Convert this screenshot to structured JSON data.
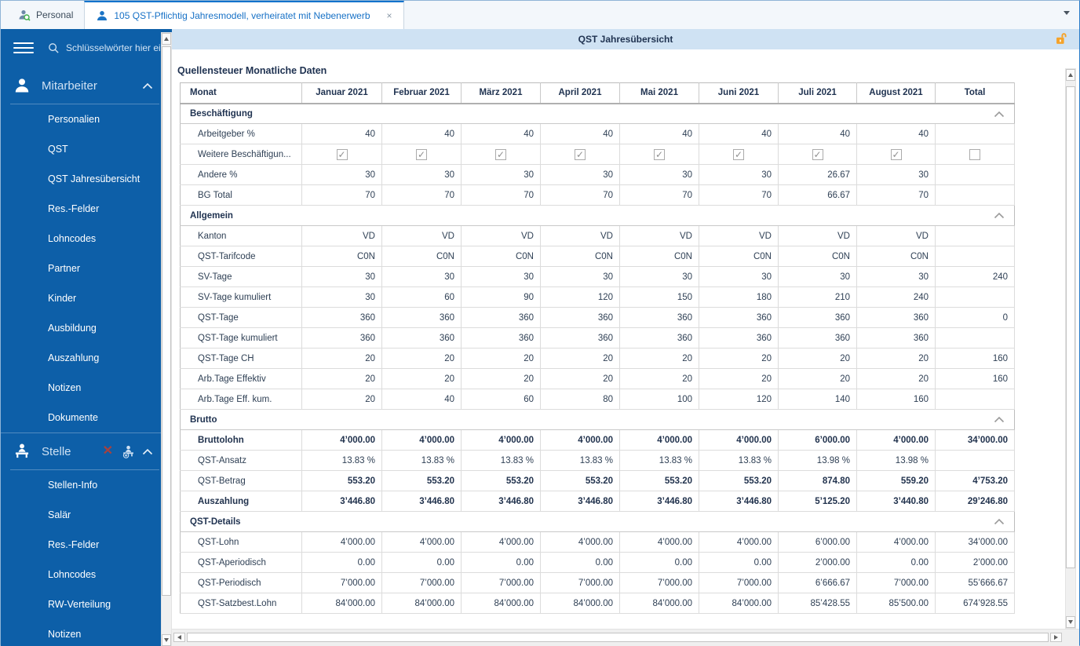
{
  "tabs": [
    {
      "label": "Personal",
      "icon": "person-search-icon",
      "active": false
    },
    {
      "label": "105 QST-Pflichtig Jahresmodell, verheiratet mit Nebenerwerb",
      "icon": "person-icon",
      "active": true,
      "close": "×"
    }
  ],
  "sidebar": {
    "search_placeholder": "Schlüsselwörter hier eing",
    "sections": [
      {
        "label": "Mitarbeiter",
        "icon": "person-icon",
        "actions": [],
        "items": [
          "Personalien",
          "QST",
          "QST Jahresübersicht",
          "Res.-Felder",
          "Lohncodes",
          "Partner",
          "Kinder",
          "Ausbildung",
          "Auszahlung",
          "Notizen",
          "Dokumente"
        ]
      },
      {
        "label": "Stelle",
        "icon": "person-desk-icon",
        "actions": [
          "delete-x-icon",
          "add-person-icon"
        ],
        "items": [
          "Stellen-Info",
          "Salär",
          "Res.-Felder",
          "Lohncodes",
          "RW-Verteilung",
          "Notizen"
        ]
      }
    ]
  },
  "main": {
    "header_title": "QST Jahresübersicht",
    "table_title": "Quellensteuer Monatliche Daten",
    "colors": {
      "sidebar": "#0d5fa8",
      "titlebar": "#cfe2f3",
      "accent_blue": "#1373cc",
      "lock_orange": "#f5a32a",
      "navy_text": "#1f3250"
    },
    "grid": {
      "columns": [
        "Monat",
        "Januar 2021",
        "Februar 2021",
        "März 2021",
        "April 2021",
        "Mai 2021",
        "Juni 2021",
        "Juli 2021",
        "August 2021",
        "Total"
      ],
      "sections": [
        {
          "title": "Beschäftigung",
          "rows": [
            {
              "label": "Arbeitgeber %",
              "values": [
                "40",
                "40",
                "40",
                "40",
                "40",
                "40",
                "40",
                "40",
                ""
              ]
            },
            {
              "label": "Weitere Beschäftigun...",
              "type": "checkbox",
              "values": [
                true,
                true,
                true,
                true,
                true,
                true,
                true,
                true,
                false
              ]
            },
            {
              "label": "Andere %",
              "values": [
                "30",
                "30",
                "30",
                "30",
                "30",
                "30",
                "26.67",
                "30",
                ""
              ]
            },
            {
              "label": "BG Total",
              "values": [
                "70",
                "70",
                "70",
                "70",
                "70",
                "70",
                "66.67",
                "70",
                ""
              ]
            }
          ]
        },
        {
          "title": "Allgemein",
          "rows": [
            {
              "label": "Kanton",
              "values": [
                "VD",
                "VD",
                "VD",
                "VD",
                "VD",
                "VD",
                "VD",
                "VD",
                ""
              ]
            },
            {
              "label": "QST-Tarifcode",
              "values": [
                "C0N",
                "C0N",
                "C0N",
                "C0N",
                "C0N",
                "C0N",
                "C0N",
                "C0N",
                ""
              ]
            },
            {
              "label": "SV-Tage",
              "values": [
                "30",
                "30",
                "30",
                "30",
                "30",
                "30",
                "30",
                "30",
                "240"
              ]
            },
            {
              "label": "SV-Tage kumuliert",
              "values": [
                "30",
                "60",
                "90",
                "120",
                "150",
                "180",
                "210",
                "240",
                ""
              ]
            },
            {
              "label": "QST-Tage",
              "values": [
                "360",
                "360",
                "360",
                "360",
                "360",
                "360",
                "360",
                "360",
                "0"
              ]
            },
            {
              "label": "QST-Tage kumuliert",
              "values": [
                "360",
                "360",
                "360",
                "360",
                "360",
                "360",
                "360",
                "360",
                ""
              ]
            },
            {
              "label": "QST-Tage CH",
              "values": [
                "20",
                "20",
                "20",
                "20",
                "20",
                "20",
                "20",
                "20",
                "160"
              ]
            },
            {
              "label": "Arb.Tage Effektiv",
              "values": [
                "20",
                "20",
                "20",
                "20",
                "20",
                "20",
                "20",
                "20",
                "160"
              ]
            },
            {
              "label": "Arb.Tage Eff. kum.",
              "values": [
                "20",
                "40",
                "60",
                "80",
                "100",
                "120",
                "140",
                "160",
                ""
              ]
            }
          ]
        },
        {
          "title": "Brutto",
          "rows": [
            {
              "label": "Bruttolohn",
              "bold_label": true,
              "bold_values": true,
              "values": [
                "4’000.00",
                "4’000.00",
                "4’000.00",
                "4’000.00",
                "4’000.00",
                "4’000.00",
                "6’000.00",
                "4’000.00",
                "34’000.00"
              ]
            },
            {
              "label": "QST-Ansatz",
              "values": [
                "13.83 %",
                "13.83 %",
                "13.83 %",
                "13.83 %",
                "13.83 %",
                "13.83 %",
                "13.98 %",
                "13.98 %",
                ""
              ]
            },
            {
              "label": "QST-Betrag",
              "bold_values": true,
              "values": [
                "553.20",
                "553.20",
                "553.20",
                "553.20",
                "553.20",
                "553.20",
                "874.80",
                "559.20",
                "4’753.20"
              ]
            },
            {
              "label": "Auszahlung",
              "bold_label": true,
              "bold_values": true,
              "values": [
                "3’446.80",
                "3’446.80",
                "3’446.80",
                "3’446.80",
                "3’446.80",
                "3’446.80",
                "5’125.20",
                "3’440.80",
                "29’246.80"
              ]
            }
          ]
        },
        {
          "title": "QST-Details",
          "rows": [
            {
              "label": "QST-Lohn",
              "values": [
                "4’000.00",
                "4’000.00",
                "4’000.00",
                "4’000.00",
                "4’000.00",
                "4’000.00",
                "6’000.00",
                "4’000.00",
                "34’000.00"
              ]
            },
            {
              "label": "QST-Aperiodisch",
              "values": [
                "0.00",
                "0.00",
                "0.00",
                "0.00",
                "0.00",
                "0.00",
                "2’000.00",
                "0.00",
                "2’000.00"
              ]
            },
            {
              "label": "QST-Periodisch",
              "values": [
                "7’000.00",
                "7’000.00",
                "7’000.00",
                "7’000.00",
                "7’000.00",
                "7’000.00",
                "6’666.67",
                "7’000.00",
                "55’666.67"
              ]
            },
            {
              "label": "QST-Satzbest.Lohn",
              "values": [
                "84’000.00",
                "84’000.00",
                "84’000.00",
                "84’000.00",
                "84’000.00",
                "84’000.00",
                "85’428.55",
                "85’500.00",
                "674’928.55"
              ]
            }
          ]
        }
      ]
    }
  }
}
